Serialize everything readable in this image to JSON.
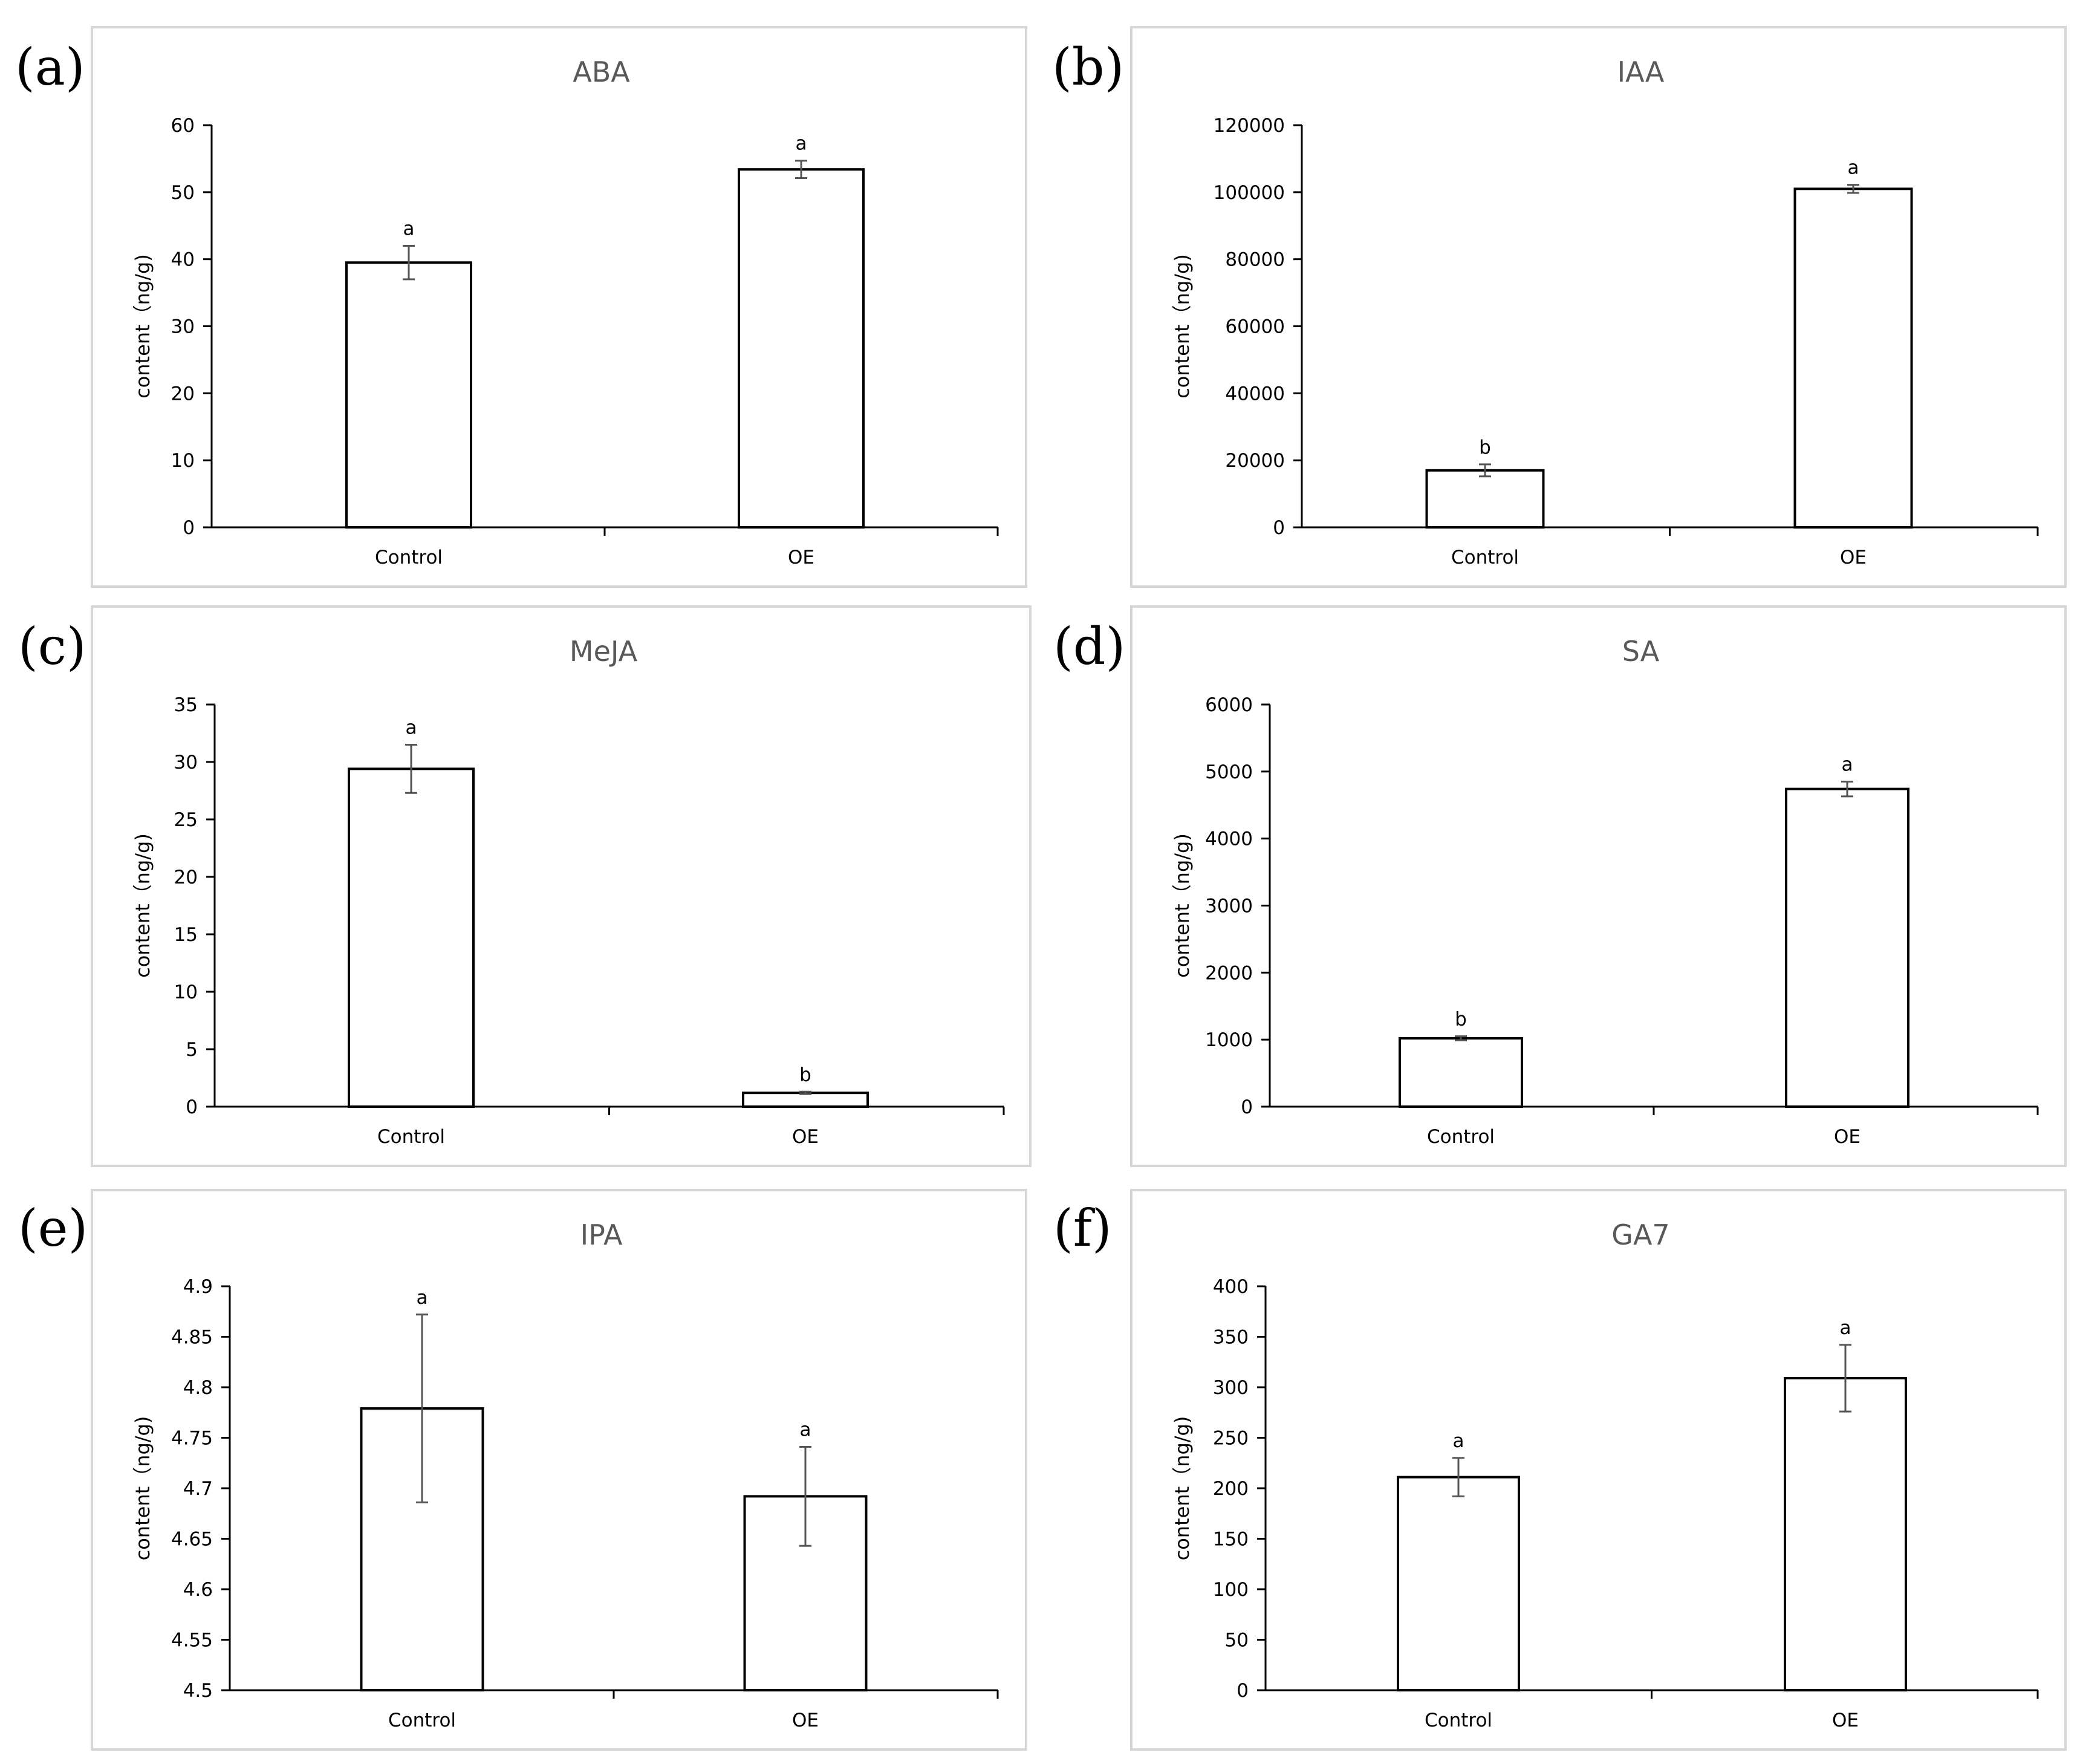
{
  "chart_data": [
    {
      "panel": "(a)",
      "type": "bar",
      "title": "ABA",
      "ylabel": "content（ng/g)",
      "xlabel": "",
      "categories": [
        "Control",
        "OE"
      ],
      "values": [
        39.5,
        53.4
      ],
      "errors": [
        2.5,
        1.3
      ],
      "letters": [
        "a",
        "a"
      ],
      "ylim": [
        0,
        60
      ],
      "yticks": [
        "0",
        "10",
        "20",
        "30",
        "40",
        "50",
        "60"
      ]
    },
    {
      "panel": "(b)",
      "type": "bar",
      "title": "IAA",
      "ylabel": "content（ng/g)",
      "xlabel": "",
      "categories": [
        "Control",
        "OE"
      ],
      "values": [
        17000,
        101000
      ],
      "errors": [
        1800,
        1200
      ],
      "letters": [
        "b",
        "a"
      ],
      "ylim": [
        0,
        120000
      ],
      "yticks": [
        "0",
        "20000",
        "40000",
        "60000",
        "80000",
        "100000",
        "120000"
      ]
    },
    {
      "panel": "(c)",
      "type": "bar",
      "title": "MeJA",
      "ylabel": "content（ng/g)",
      "xlabel": "",
      "categories": [
        "Control",
        "OE"
      ],
      "values": [
        29.4,
        1.2
      ],
      "errors": [
        2.1,
        0.1
      ],
      "letters": [
        "a",
        "b"
      ],
      "ylim": [
        0,
        35
      ],
      "yticks": [
        "0",
        "5",
        "10",
        "15",
        "20",
        "25",
        "30",
        "35"
      ]
    },
    {
      "panel": "(d)",
      "type": "bar",
      "title": "SA",
      "ylabel": "content（ng/g)",
      "xlabel": "",
      "categories": [
        "Control",
        "OE"
      ],
      "values": [
        1020,
        4740
      ],
      "errors": [
        30,
        110
      ],
      "letters": [
        "b",
        "a"
      ],
      "ylim": [
        0,
        6000
      ],
      "yticks": [
        "0",
        "1000",
        "2000",
        "3000",
        "4000",
        "5000",
        "6000"
      ]
    },
    {
      "panel": "(e)",
      "type": "bar",
      "title": "IPA",
      "ylabel": "content（ng/g)",
      "xlabel": "",
      "categories": [
        "Control",
        "OE"
      ],
      "values": [
        4.779,
        4.692
      ],
      "errors": [
        0.093,
        0.049
      ],
      "letters": [
        "a",
        "a"
      ],
      "ylim": [
        4.5,
        4.9
      ],
      "yticks": [
        "4.5",
        "4.55",
        "4.6",
        "4.65",
        "4.7",
        "4.75",
        "4.8",
        "4.85",
        "4.9"
      ]
    },
    {
      "panel": "(f)",
      "type": "bar",
      "title": "GA7",
      "ylabel": "content（ng/g)",
      "xlabel": "",
      "categories": [
        "Control",
        "OE"
      ],
      "values": [
        211,
        309
      ],
      "errors": [
        19,
        33
      ],
      "letters": [
        "a",
        "a"
      ],
      "ylim": [
        0,
        400
      ],
      "yticks": [
        "0",
        "50",
        "100",
        "150",
        "200",
        "250",
        "300",
        "350",
        "400"
      ]
    }
  ]
}
